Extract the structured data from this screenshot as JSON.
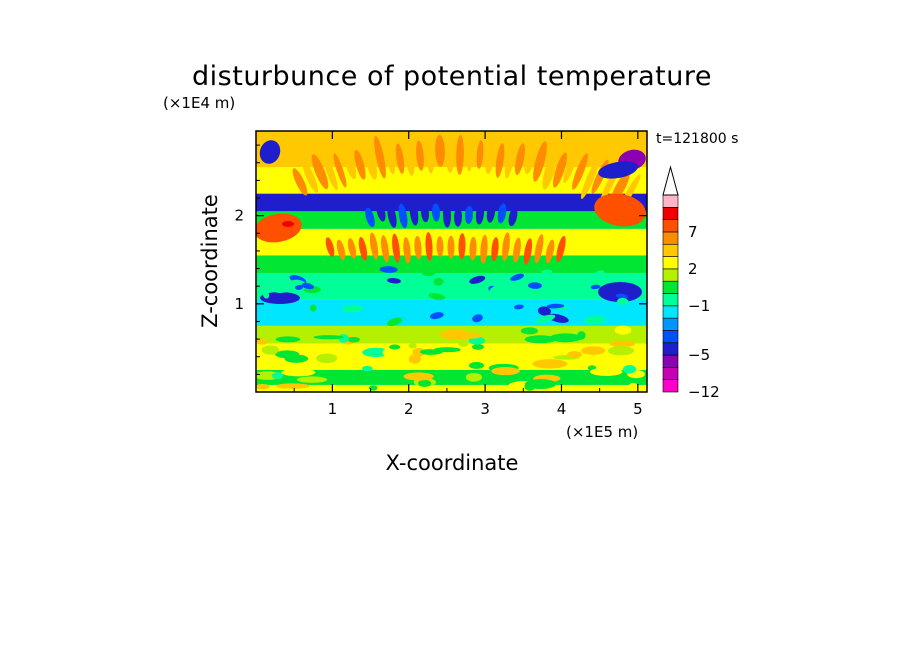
{
  "chart_data": {
    "type": "heatmap",
    "title": "disturbunce of potential temperature",
    "time_label": "t=121800 s",
    "xlabel": "X-coordinate",
    "ylabel": "Z-coordinate",
    "x_unit": "(×1E5 m)",
    "y_unit": "(×1E4 m)",
    "xlim": [
      0,
      5.12
    ],
    "ylim": [
      0,
      2.96
    ],
    "x_ticks": [
      1,
      2,
      3,
      4,
      5
    ],
    "y_ticks": [
      1,
      2
    ],
    "x_tick_labels": [
      "1",
      "2",
      "3",
      "4",
      "5"
    ],
    "y_tick_labels": [
      "1",
      "2"
    ],
    "colorbar": {
      "levels": [
        -12,
        -9,
        -7,
        -5,
        -4,
        -3,
        -2,
        -1,
        0,
        1,
        2,
        3,
        5,
        7,
        9,
        11
      ],
      "labels": [
        {
          "value": 7,
          "text": "7"
        },
        {
          "value": 2,
          "text": "2"
        },
        {
          "value": -1,
          "text": "−1"
        },
        {
          "value": -5,
          "text": "−5"
        },
        {
          "value": -12,
          "text": "−12"
        }
      ],
      "colors": [
        "#ff00c8",
        "#c800b4",
        "#8c00b4",
        "#1e1ecd",
        "#0050ff",
        "#0096ff",
        "#00e6ff",
        "#00ff96",
        "#00e632",
        "#b4f000",
        "#ffff00",
        "#ffc800",
        "#ff8c00",
        "#ff5000",
        "#f00000",
        "#ffb4c8"
      ],
      "extension_top": true
    },
    "field_bands": [
      {
        "z": [
          0.0,
          0.08
        ],
        "value": 2.5
      },
      {
        "z": [
          0.08,
          0.25
        ],
        "value": 0.3
      },
      {
        "z": [
          0.25,
          0.55
        ],
        "value": 2.4
      },
      {
        "z": [
          0.55,
          0.75
        ],
        "value": 1.5
      },
      {
        "z": [
          0.75,
          1.05
        ],
        "value": -1.2
      },
      {
        "z": [
          1.05,
          1.35
        ],
        "value": -0.8
      },
      {
        "z": [
          1.35,
          1.55
        ],
        "value": 0.5
      },
      {
        "z": [
          1.55,
          1.85
        ],
        "value": 2.2
      },
      {
        "z": [
          1.85,
          2.05
        ],
        "value": 0.5
      },
      {
        "z": [
          2.05,
          2.25
        ],
        "value": -4.5
      },
      {
        "z": [
          2.25,
          2.55
        ],
        "value": 2.5
      },
      {
        "z": [
          2.55,
          2.96
        ],
        "value": 3.5
      }
    ]
  }
}
